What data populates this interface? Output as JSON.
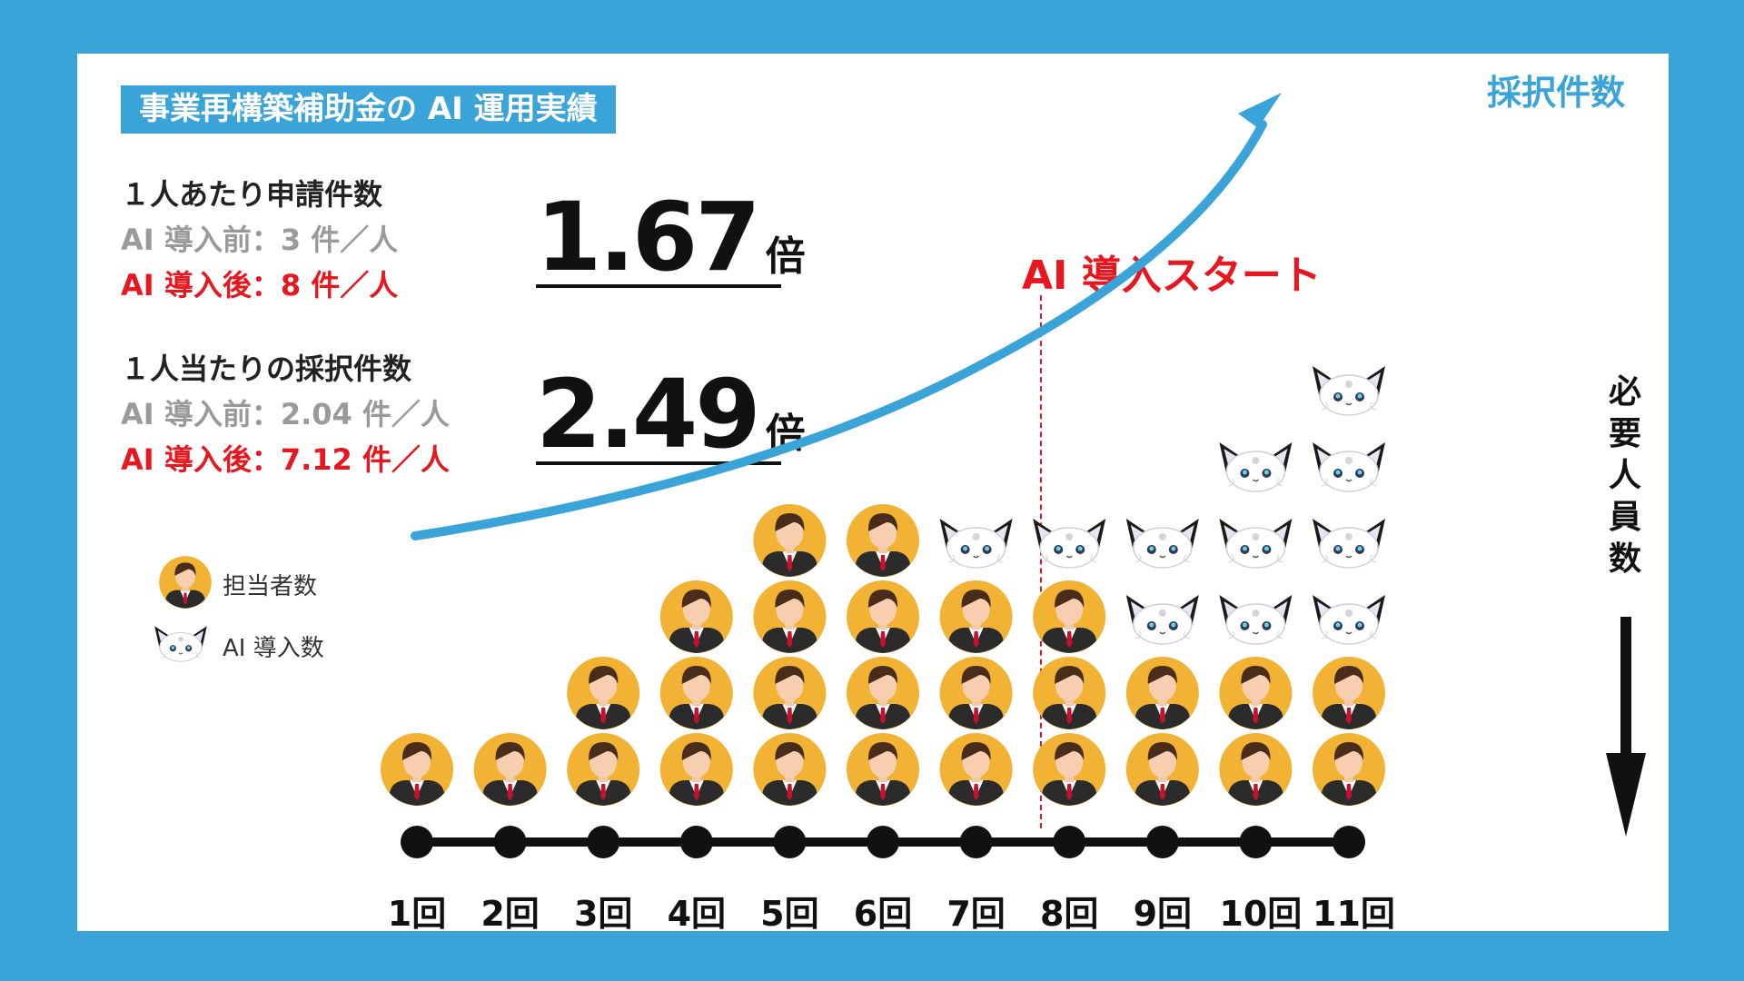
{
  "title": "事業再構築補助金の AI 運用実績",
  "stats": [
    {
      "heading": "１人あたり申請件数",
      "before": "AI 導入前：3 件／人",
      "after": "AI 導入後：8 件／人",
      "ratio_value": "1.67",
      "ratio_unit": "倍"
    },
    {
      "heading": "１人当たりの採択件数",
      "before": "AI 導入前：2.04 件／人",
      "after": "AI 導入後：7.12 件／人",
      "ratio_value": "2.49",
      "ratio_unit": "倍"
    }
  ],
  "ai_start_label": "AI 導入スタート",
  "curve_label": "採択件数",
  "staff_axis_label": "必要人員数",
  "legend": {
    "staff": "担当者数",
    "ai": "AI 導入数"
  },
  "rounds": [
    {
      "label": "1回",
      "staff": 1,
      "ai": 0
    },
    {
      "label": "2回",
      "staff": 1,
      "ai": 0
    },
    {
      "label": "3回",
      "staff": 2,
      "ai": 0
    },
    {
      "label": "4回",
      "staff": 3,
      "ai": 0
    },
    {
      "label": "5回",
      "staff": 4,
      "ai": 0
    },
    {
      "label": "6回",
      "staff": 4,
      "ai": 0
    },
    {
      "label": "7回",
      "staff": 3,
      "ai": 1
    },
    {
      "label": "8回",
      "staff": 3,
      "ai": 1
    },
    {
      "label": "9回",
      "staff": 2,
      "ai": 2
    },
    {
      "label": "10回",
      "staff": 2,
      "ai": 3
    },
    {
      "label": "11回",
      "staff": 2,
      "ai": 4
    }
  ],
  "colors": {
    "frame": "#3aa3d7",
    "curve": "#3aa3d7",
    "accent_red": "#e8161e",
    "staff_circle": "#f2b233",
    "timeline": "#111111"
  },
  "icons": {
    "staff": "person-in-suit-icon",
    "ai": "white-cat-mascot-icon",
    "down_arrow": "arrow-down-icon",
    "up_arrow": "arrow-up-right-icon"
  }
}
